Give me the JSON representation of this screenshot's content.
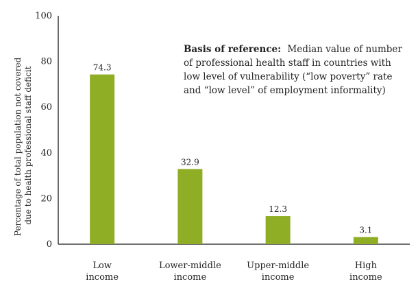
{
  "chart_data": {
    "type": "bar",
    "categories": [
      [
        "Low",
        "income"
      ],
      [
        "Lower-middle",
        "income"
      ],
      [
        "Upper-middle",
        "income"
      ],
      [
        "High",
        "income"
      ]
    ],
    "values": [
      74.3,
      32.9,
      12.3,
      3.1
    ],
    "value_labels": [
      "74.3",
      "32.9",
      "12.3",
      "3.1"
    ],
    "title": "",
    "xlabel": "",
    "ylabel_lines": [
      "Percentage of total population not covered",
      "due to health professional staff deficit"
    ],
    "ylim": [
      0,
      100
    ],
    "yticks": [
      0,
      20,
      40,
      60,
      80,
      100
    ],
    "grid": false,
    "bar_color": "#8fae26",
    "annotation": {
      "bold": "Basis of reference:",
      "lines": [
        "Median value of number",
        "of professional health staff in countries with",
        "low level of vulnerability (“low poverty” rate",
        "and “low level” of employment informality)"
      ]
    }
  }
}
